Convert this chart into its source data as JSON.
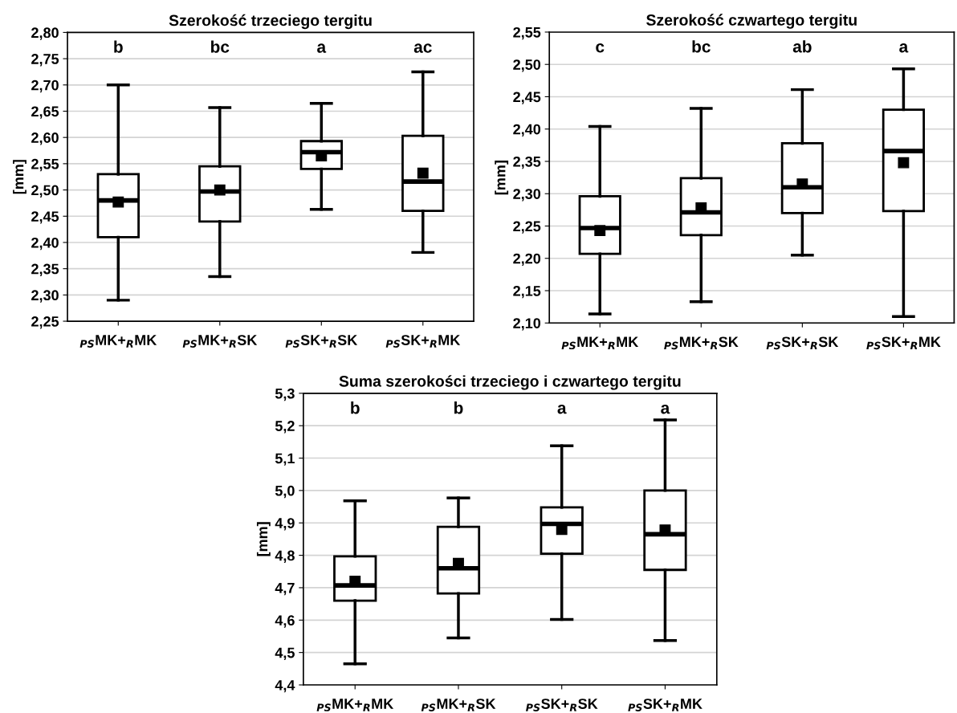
{
  "chart_data": [
    {
      "type": "box",
      "title": "Szerokość trzeciego tergitu",
      "ylabel": "[mm]",
      "categories": [
        "$_{PS}$MK+$_{R}$MK",
        "$_{PS}$MK+$_{R}$SK",
        "$_{PS}$SK+$_{R}$SK",
        "$_{PS}$SK+$_{R}$MK"
      ],
      "boxes": [
        {
          "low": 2.29,
          "q1": 2.41,
          "median": 2.48,
          "q3": 2.53,
          "high": 2.7,
          "mean": 2.477
        },
        {
          "low": 2.335,
          "q1": 2.44,
          "median": 2.497,
          "q3": 2.545,
          "high": 2.657,
          "mean": 2.5
        },
        {
          "low": 2.463,
          "q1": 2.54,
          "median": 2.572,
          "q3": 2.593,
          "high": 2.665,
          "mean": 2.565
        },
        {
          "low": 2.381,
          "q1": 2.46,
          "median": 2.516,
          "q3": 2.603,
          "high": 2.725,
          "mean": 2.532
        }
      ],
      "ylim": [
        2.25,
        2.8
      ],
      "yticks": [
        {
          "value": 2.25,
          "label": "2,25"
        },
        {
          "value": 2.3,
          "label": "2,30"
        },
        {
          "value": 2.35,
          "label": "2,35"
        },
        {
          "value": 2.4,
          "label": "2,40"
        },
        {
          "value": 2.45,
          "label": "2,45"
        },
        {
          "value": 2.5,
          "label": "2,50"
        },
        {
          "value": 2.55,
          "label": "2,55"
        },
        {
          "value": 2.6,
          "label": "2,60"
        },
        {
          "value": 2.65,
          "label": "2,65"
        },
        {
          "value": 2.7,
          "label": "2,70"
        },
        {
          "value": 2.75,
          "label": "2,75"
        },
        {
          "value": 2.8,
          "label": "2,80"
        }
      ],
      "annotations": [
        "b",
        "bc",
        "a",
        "ac"
      ],
      "grid": "y",
      "marker": "square",
      "legend": false
    },
    {
      "type": "box",
      "title": "Szerokość czwartego tergitu",
      "ylabel": "[mm]",
      "categories": [
        "$_{PS}$MK+$_{R}$MK",
        "$_{PS}$MK+$_{R}$SK",
        "$_{PS}$SK+$_{R}$SK",
        "$_{PS}$SK+$_{R}$MK"
      ],
      "boxes": [
        {
          "low": 2.114,
          "q1": 2.207,
          "median": 2.247,
          "q3": 2.296,
          "high": 2.404,
          "mean": 2.243
        },
        {
          "low": 2.133,
          "q1": 2.236,
          "median": 2.271,
          "q3": 2.324,
          "high": 2.432,
          "mean": 2.278
        },
        {
          "low": 2.205,
          "q1": 2.27,
          "median": 2.31,
          "q3": 2.378,
          "high": 2.461,
          "mean": 2.315
        },
        {
          "low": 2.11,
          "q1": 2.273,
          "median": 2.366,
          "q3": 2.43,
          "high": 2.493,
          "mean": 2.348
        }
      ],
      "ylim": [
        2.1,
        2.55
      ],
      "yticks": [
        {
          "value": 2.1,
          "label": "2,10"
        },
        {
          "value": 2.15,
          "label": "2,15"
        },
        {
          "value": 2.2,
          "label": "2,20"
        },
        {
          "value": 2.25,
          "label": "2,25"
        },
        {
          "value": 2.3,
          "label": "2,30"
        },
        {
          "value": 2.35,
          "label": "2,35"
        },
        {
          "value": 2.4,
          "label": "2,40"
        },
        {
          "value": 2.45,
          "label": "2,45"
        },
        {
          "value": 2.5,
          "label": "2,50"
        },
        {
          "value": 2.55,
          "label": "2,55"
        }
      ],
      "annotations": [
        "c",
        "bc",
        "ab",
        "a"
      ],
      "grid": "y",
      "marker": "square",
      "legend": false
    },
    {
      "type": "box",
      "title": "Suma szerokości trzeciego i czwartego tergitu",
      "ylabel": "[mm]",
      "categories": [
        "$_{PS}$MK+$_{R}$MK",
        "$_{PS}$MK+$_{R}$SK",
        "$_{PS}$SK+$_{R}$SK",
        "$_{PS}$SK+$_{R}$MK"
      ],
      "boxes": [
        {
          "low": 4.465,
          "q1": 4.66,
          "median": 4.707,
          "q3": 4.797,
          "high": 4.968,
          "mean": 4.72
        },
        {
          "low": 4.545,
          "q1": 4.682,
          "median": 4.76,
          "q3": 4.888,
          "high": 4.977,
          "mean": 4.775
        },
        {
          "low": 4.602,
          "q1": 4.805,
          "median": 4.897,
          "q3": 4.948,
          "high": 5.138,
          "mean": 4.88
        },
        {
          "low": 4.537,
          "q1": 4.755,
          "median": 4.865,
          "q3": 5.0,
          "high": 5.218,
          "mean": 4.878
        }
      ],
      "ylim": [
        4.4,
        5.3
      ],
      "yticks": [
        {
          "value": 4.4,
          "label": "4,4"
        },
        {
          "value": 4.5,
          "label": "4,5"
        },
        {
          "value": 4.6,
          "label": "4,6"
        },
        {
          "value": 4.7,
          "label": "4,7"
        },
        {
          "value": 4.8,
          "label": "4,8"
        },
        {
          "value": 4.9,
          "label": "4,9"
        },
        {
          "value": 5.0,
          "label": "5,0"
        },
        {
          "value": 5.1,
          "label": "5,1"
        },
        {
          "value": 5.2,
          "label": "5,2"
        },
        {
          "value": 5.3,
          "label": "5,3"
        }
      ],
      "annotations": [
        "b",
        "b",
        "a",
        "a"
      ],
      "grid": "y",
      "marker": "square",
      "legend": false
    }
  ]
}
